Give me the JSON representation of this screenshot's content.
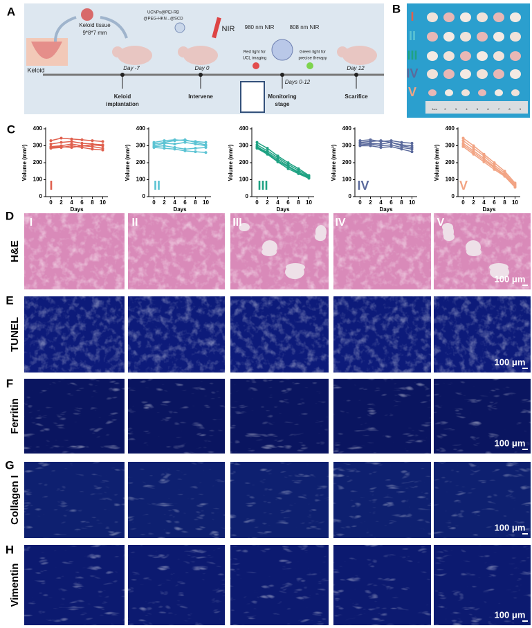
{
  "panel_labels": [
    "A",
    "B",
    "C",
    "D",
    "E",
    "F",
    "G",
    "H"
  ],
  "schematic": {
    "keloid": "Keloid",
    "tissue": "Keloid tissue",
    "size": "9*8*7 mm",
    "np": [
      "UCNPs@PEI-RB",
      "@PEG-HKN...@SCD"
    ],
    "nir": "NIR",
    "nir980": "980 nm NIR",
    "nir808": "808 nm NIR",
    "red": [
      "Red light for",
      "UCL imaging"
    ],
    "green": [
      "Green light for",
      "precise therapy"
    ],
    "days": [
      "Day -7",
      "Day 0",
      "Days 0-12",
      "Day 12"
    ],
    "steps": [
      [
        "Keloid",
        "implantation"
      ],
      [
        "Intervene"
      ],
      [
        "Monitoring",
        "stage"
      ],
      [
        "Scarifice"
      ]
    ]
  },
  "photo": {
    "groups": [
      "I",
      "II",
      "III",
      "IV",
      "V"
    ],
    "ruler": [
      "1cm",
      "2",
      "3",
      "4",
      "5",
      "6",
      "7",
      "8",
      "9"
    ]
  },
  "chart_data": [
    {
      "type": "line",
      "label": "I",
      "xlabel": "Days",
      "ylabel": "Volume (mm³)",
      "x": [
        0,
        2,
        4,
        6,
        8,
        10
      ],
      "xlim": [
        -1,
        11
      ],
      "xticks": [
        0,
        2,
        4,
        6,
        8,
        10
      ],
      "ylim": [
        0,
        400
      ],
      "yticks": [
        0,
        100,
        200,
        300,
        400
      ],
      "color": "#e0604e",
      "series": [
        {
          "values": [
            330,
            345,
            340,
            335,
            330,
            325
          ]
        },
        {
          "values": [
            310,
            320,
            325,
            315,
            310,
            305
          ]
        },
        {
          "values": [
            295,
            300,
            310,
            300,
            305,
            300
          ]
        },
        {
          "values": [
            290,
            295,
            290,
            300,
            295,
            285
          ]
        },
        {
          "values": [
            285,
            290,
            300,
            290,
            280,
            275
          ]
        }
      ]
    },
    {
      "type": "line",
      "label": "II",
      "xlabel": "Days",
      "ylabel": "Volume (mm³)",
      "x": [
        0,
        2,
        4,
        6,
        8,
        10
      ],
      "xlim": [
        -1,
        11
      ],
      "xticks": [
        0,
        2,
        4,
        6,
        8,
        10
      ],
      "ylim": [
        0,
        400
      ],
      "yticks": [
        0,
        100,
        200,
        300,
        400
      ],
      "color": "#5bc3d3",
      "series": [
        {
          "values": [
            320,
            330,
            335,
            330,
            325,
            320
          ]
        },
        {
          "values": [
            310,
            320,
            330,
            335,
            320,
            305
          ]
        },
        {
          "values": [
            300,
            315,
            310,
            320,
            310,
            300
          ]
        },
        {
          "values": [
            295,
            300,
            290,
            280,
            285,
            290
          ]
        },
        {
          "values": [
            290,
            285,
            280,
            270,
            265,
            260
          ]
        }
      ]
    },
    {
      "type": "line",
      "label": "III",
      "xlabel": "Days",
      "ylabel": "Volume (mm³)",
      "x": [
        0,
        2,
        4,
        6,
        8,
        10
      ],
      "xlim": [
        -1,
        11
      ],
      "xticks": [
        0,
        2,
        4,
        6,
        8,
        10
      ],
      "ylim": [
        0,
        400
      ],
      "yticks": [
        0,
        100,
        200,
        300,
        400
      ],
      "color": "#1fa283",
      "series": [
        {
          "values": [
            320,
            285,
            240,
            200,
            165,
            125
          ]
        },
        {
          "values": [
            305,
            270,
            230,
            190,
            155,
            120
          ]
        },
        {
          "values": [
            295,
            260,
            220,
            180,
            145,
            115
          ]
        },
        {
          "values": [
            290,
            255,
            210,
            175,
            140,
            110
          ]
        },
        {
          "values": [
            285,
            250,
            205,
            165,
            135,
            108
          ]
        }
      ]
    },
    {
      "type": "line",
      "label": "IV",
      "xlabel": "Days",
      "ylabel": "Volume (mm³)",
      "x": [
        0,
        2,
        4,
        6,
        8,
        10
      ],
      "xlim": [
        -1,
        11
      ],
      "xticks": [
        0,
        2,
        4,
        6,
        8,
        10
      ],
      "ylim": [
        0,
        400
      ],
      "yticks": [
        0,
        100,
        200,
        300,
        400
      ],
      "color": "#5b6a9c",
      "series": [
        {
          "values": [
            330,
            335,
            325,
            330,
            320,
            315
          ]
        },
        {
          "values": [
            320,
            325,
            330,
            320,
            305,
            300
          ]
        },
        {
          "values": [
            315,
            315,
            310,
            320,
            300,
            290
          ]
        },
        {
          "values": [
            305,
            310,
            300,
            305,
            290,
            280
          ]
        },
        {
          "values": [
            300,
            300,
            290,
            295,
            280,
            265
          ]
        }
      ]
    },
    {
      "type": "line",
      "label": "V",
      "xlabel": "Days",
      "ylabel": "Volume (mm³)",
      "x": [
        0,
        2,
        4,
        6,
        8,
        10
      ],
      "xlim": [
        -1,
        11
      ],
      "xticks": [
        0,
        2,
        4,
        6,
        8,
        10
      ],
      "ylim": [
        0,
        400
      ],
      "yticks": [
        0,
        100,
        200,
        300,
        400
      ],
      "color": "#f2a484",
      "series": [
        {
          "values": [
            345,
            300,
            250,
            200,
            150,
            80
          ]
        },
        {
          "values": [
            330,
            285,
            240,
            185,
            140,
            72
          ]
        },
        {
          "values": [
            315,
            270,
            225,
            175,
            130,
            65
          ]
        },
        {
          "values": [
            305,
            260,
            215,
            170,
            125,
            60
          ]
        },
        {
          "values": [
            295,
            250,
            205,
            160,
            120,
            55
          ]
        }
      ]
    }
  ],
  "micrographs": {
    "columns": [
      "I",
      "II",
      "III",
      "IV",
      "V"
    ],
    "rows": [
      "H&E",
      "TUNEL",
      "Ferritin",
      "Collagen I",
      "Vimentin"
    ],
    "scale_bar": "100 μm"
  }
}
